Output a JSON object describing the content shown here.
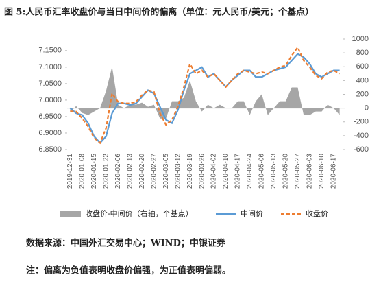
{
  "chart_data": {
    "type": "line",
    "title": "图 5:人民币汇率收盘价与当日中间价的偏离（单位：元人民币/美元；个基点）",
    "categories": [
      "2019-12-31",
      null,
      "2020-01-08",
      null,
      "2020-01-15",
      null,
      "2020-01-22",
      null,
      "2020-02-06",
      null,
      "2020-02-13",
      null,
      "2020-02-20",
      null,
      "2020-02-27",
      null,
      "2020-03-05",
      null,
      "2020-03-12",
      null,
      "2020-03-19",
      null,
      "2020-03-26",
      null,
      "2020-04-02",
      null,
      "2020-04-10",
      null,
      "2020-04-17",
      null,
      "2020-04-24",
      null,
      "2020-05-06",
      null,
      "2020-05-13",
      null,
      "2020-05-20",
      null,
      "2020-05-27",
      null,
      "2020-06-03",
      null,
      "2020-06-10",
      null,
      "2020-06-17",
      null
    ],
    "series": [
      {
        "name": "收盘价-中间价（右轴，个基点）",
        "type": "area",
        "axis": "y2",
        "color": "#a6a6a6",
        "values": [
          -60,
          30,
          -70,
          -100,
          -50,
          0,
          250,
          600,
          50,
          0,
          50,
          50,
          80,
          20,
          50,
          -150,
          -150,
          100,
          100,
          150,
          400,
          100,
          -50,
          50,
          0,
          50,
          0,
          0,
          100,
          100,
          -100,
          100,
          200,
          -100,
          0,
          100,
          100,
          300,
          300,
          -100,
          -100,
          -50,
          -50,
          50,
          0,
          -100
        ]
      },
      {
        "name": "中间价",
        "color": "#5b9bd5",
        "values": [
          6.976,
          6.96,
          6.955,
          6.93,
          6.89,
          6.87,
          6.89,
          6.96,
          6.99,
          6.99,
          6.985,
          6.99,
          7.01,
          7.03,
          7.02,
          6.98,
          6.94,
          6.93,
          6.97,
          7.03,
          7.08,
          7.09,
          7.1,
          7.07,
          7.08,
          7.06,
          7.04,
          7.06,
          7.075,
          7.09,
          7.09,
          7.07,
          7.07,
          7.08,
          7.09,
          7.095,
          7.1,
          7.12,
          7.14,
          7.13,
          7.11,
          7.08,
          7.07,
          7.08,
          7.09,
          7.09
        ]
      },
      {
        "name": "收盘价",
        "color": "#ed7d31",
        "dash": true,
        "values": [
          6.966,
          6.965,
          6.945,
          6.92,
          6.885,
          6.87,
          6.915,
          7.02,
          6.995,
          6.99,
          6.99,
          6.995,
          7.015,
          7.03,
          7.025,
          6.96,
          6.925,
          6.94,
          6.98,
          7.04,
          7.11,
          7.08,
          7.09,
          7.07,
          7.08,
          7.06,
          7.04,
          7.06,
          7.08,
          7.09,
          7.085,
          7.08,
          7.085,
          7.08,
          7.09,
          7.1,
          7.105,
          7.135,
          7.16,
          7.12,
          7.1,
          7.075,
          7.065,
          7.085,
          7.09,
          7.08
        ]
      }
    ],
    "ylim": [
      6.85,
      7.185
    ],
    "yticks": [
      {
        "value": 6.85,
        "label": "6.8500"
      },
      {
        "value": 6.9,
        "label": "6.9000"
      },
      {
        "value": 6.95,
        "label": "6.9500"
      },
      {
        "value": 7.0,
        "label": "7.0000"
      },
      {
        "value": 7.05,
        "label": "7.0500"
      },
      {
        "value": 7.1,
        "label": "7.1000"
      },
      {
        "value": 7.15,
        "label": "7.1500"
      }
    ],
    "y2lim": [
      -600,
      1000
    ],
    "y2ticks": [
      -600,
      -400,
      -200,
      0,
      200,
      400,
      600,
      800,
      1000
    ],
    "legend": "bottom"
  },
  "notes": [
    "数据来源：中国外汇交易中心；WIND；中银证券",
    "注：偏离为负值表明收盘价偏强，为正值表明偏弱。"
  ]
}
